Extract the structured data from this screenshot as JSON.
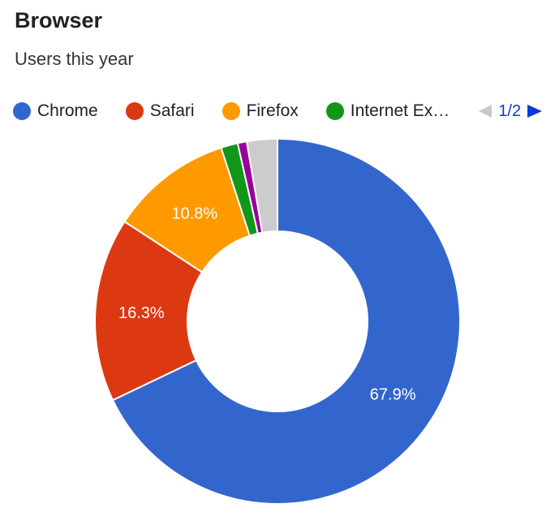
{
  "card": {
    "title": "Browser",
    "subtitle": "Users this year"
  },
  "legend": {
    "items": [
      {
        "label": "Chrome",
        "color": "#3366cc"
      },
      {
        "label": "Safari",
        "color": "#dc3912"
      },
      {
        "label": "Firefox",
        "color": "#ff9900"
      },
      {
        "label": "Internet Ex…",
        "color": "#109618"
      }
    ],
    "page": "1/2",
    "prev_icon": "triangle-left-icon",
    "next_icon": "triangle-right-icon"
  },
  "chart_data": {
    "type": "pie",
    "donut": true,
    "title": "Browser",
    "subtitle": "Users this year",
    "legend_position": "top",
    "slices": [
      {
        "label": "Chrome",
        "value": 67.9,
        "color": "#3366cc",
        "data_label": "67.9%"
      },
      {
        "label": "Safari",
        "value": 16.3,
        "color": "#dc3912",
        "data_label": "16.3%"
      },
      {
        "label": "Firefox",
        "value": 10.8,
        "color": "#ff9900",
        "data_label": "10.8%"
      },
      {
        "label": "Internet Ex…",
        "value": 1.5,
        "color": "#109618",
        "data_label": ""
      },
      {
        "label": "",
        "value": 0.8,
        "color": "#990099",
        "data_label": ""
      },
      {
        "label": "",
        "value": 2.7,
        "color": "#cccccc",
        "data_label": ""
      }
    ]
  }
}
